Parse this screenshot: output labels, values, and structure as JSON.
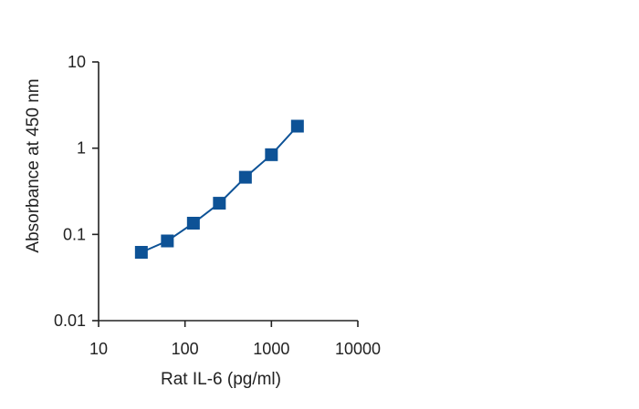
{
  "chart_data": {
    "type": "line",
    "x_scale": "log",
    "y_scale": "log",
    "xlabel": "Rat IL-6 (pg/ml)",
    "ylabel": "Absorbance at 450 nm",
    "xlim": [
      10,
      10000
    ],
    "ylim": [
      0.01,
      10
    ],
    "x_ticks": [
      10,
      100,
      1000,
      10000
    ],
    "x_tick_labels": [
      "10",
      "100",
      "1000",
      "10000"
    ],
    "y_ticks": [
      0.01,
      0.1,
      1,
      10
    ],
    "y_tick_labels": [
      "0.01",
      "0.1",
      "1",
      "10"
    ],
    "grid": false,
    "series": [
      {
        "marker": "square",
        "color": "#0d5296",
        "x": [
          31.25,
          62.5,
          125,
          250,
          500,
          1000,
          2000
        ],
        "y": [
          0.062,
          0.084,
          0.135,
          0.23,
          0.46,
          0.84,
          1.8
        ]
      }
    ]
  }
}
